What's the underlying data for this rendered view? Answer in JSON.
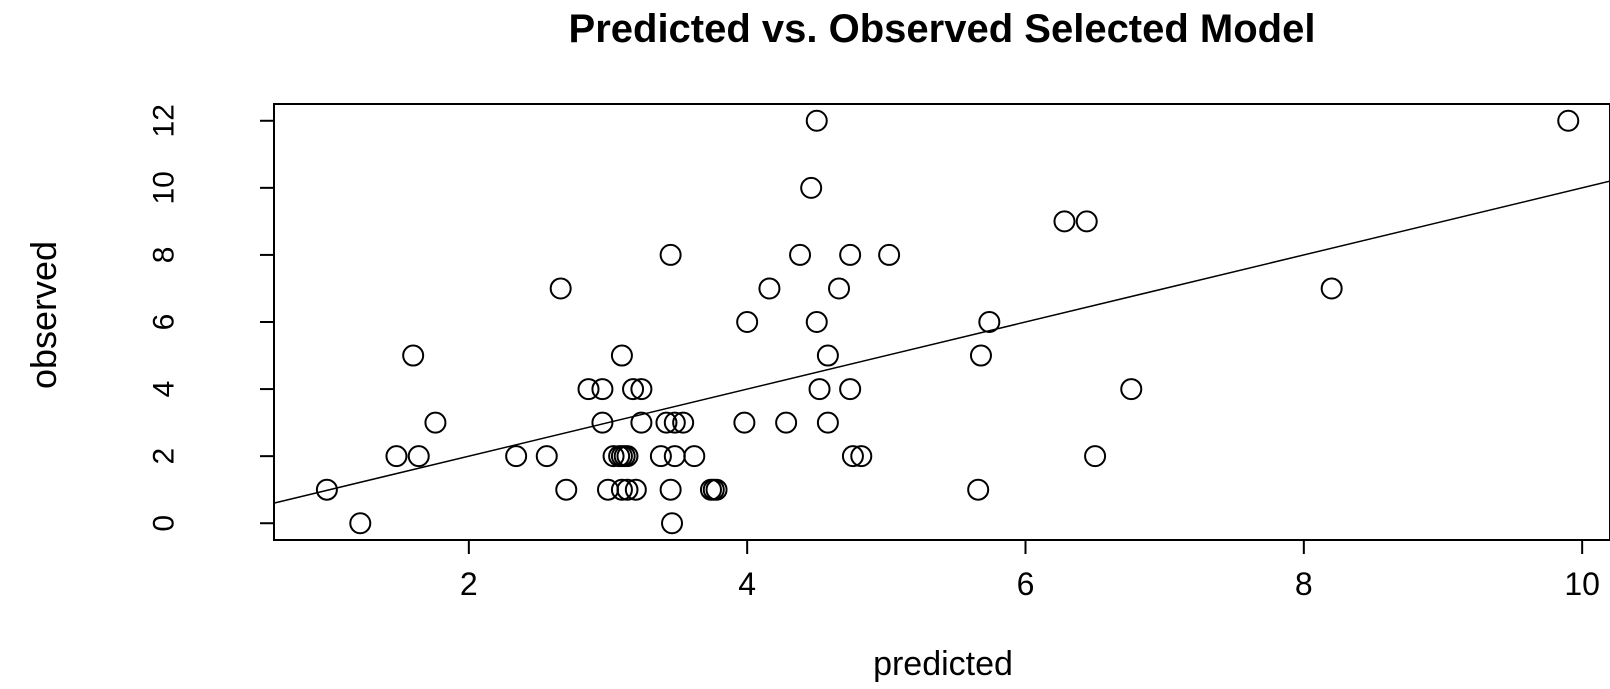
{
  "chart_data": {
    "type": "scatter",
    "title": "Predicted vs. Observed Selected Model",
    "xlabel": "predicted",
    "ylabel": "observed",
    "xlim": [
      0.6,
      10.2
    ],
    "ylim": [
      -0.5,
      12.5
    ],
    "x_ticks": [
      2,
      4,
      6,
      8,
      10
    ],
    "y_ticks": [
      0,
      2,
      4,
      6,
      8,
      10,
      12
    ],
    "x_tick_labels": [
      "2",
      "4",
      "6",
      "8",
      "10"
    ],
    "y_tick_labels": [
      "0",
      "2",
      "4",
      "6",
      "8",
      "10",
      "12"
    ],
    "grid": false,
    "legend": "none",
    "marker": "open-circle",
    "marker_color": "#000000",
    "series": [
      {
        "points": [
          {
            "x": 0.98,
            "y": 1
          },
          {
            "x": 1.22,
            "y": 0
          },
          {
            "x": 1.48,
            "y": 2
          },
          {
            "x": 1.6,
            "y": 5
          },
          {
            "x": 1.64,
            "y": 2
          },
          {
            "x": 1.76,
            "y": 3
          },
          {
            "x": 2.34,
            "y": 2
          },
          {
            "x": 2.56,
            "y": 2
          },
          {
            "x": 2.66,
            "y": 7
          },
          {
            "x": 2.7,
            "y": 1
          },
          {
            "x": 2.86,
            "y": 4
          },
          {
            "x": 2.96,
            "y": 4
          },
          {
            "x": 2.96,
            "y": 3
          },
          {
            "x": 3.0,
            "y": 1
          },
          {
            "x": 3.04,
            "y": 2
          },
          {
            "x": 3.08,
            "y": 2
          },
          {
            "x": 3.1,
            "y": 2
          },
          {
            "x": 3.12,
            "y": 2
          },
          {
            "x": 3.14,
            "y": 2
          },
          {
            "x": 3.1,
            "y": 5
          },
          {
            "x": 3.1,
            "y": 1
          },
          {
            "x": 3.14,
            "y": 1
          },
          {
            "x": 3.18,
            "y": 4
          },
          {
            "x": 3.2,
            "y": 1
          },
          {
            "x": 3.24,
            "y": 4
          },
          {
            "x": 3.24,
            "y": 3
          },
          {
            "x": 3.38,
            "y": 2
          },
          {
            "x": 3.42,
            "y": 3
          },
          {
            "x": 3.45,
            "y": 8
          },
          {
            "x": 3.45,
            "y": 1
          },
          {
            "x": 3.46,
            "y": 0
          },
          {
            "x": 3.48,
            "y": 3
          },
          {
            "x": 3.48,
            "y": 2
          },
          {
            "x": 3.54,
            "y": 3
          },
          {
            "x": 3.62,
            "y": 2
          },
          {
            "x": 3.74,
            "y": 1
          },
          {
            "x": 3.76,
            "y": 1
          },
          {
            "x": 3.78,
            "y": 1
          },
          {
            "x": 3.98,
            "y": 3
          },
          {
            "x": 4.0,
            "y": 6
          },
          {
            "x": 4.16,
            "y": 7
          },
          {
            "x": 4.28,
            "y": 3
          },
          {
            "x": 4.38,
            "y": 8
          },
          {
            "x": 4.46,
            "y": 10
          },
          {
            "x": 4.5,
            "y": 12
          },
          {
            "x": 4.5,
            "y": 6
          },
          {
            "x": 4.52,
            "y": 4
          },
          {
            "x": 4.58,
            "y": 5
          },
          {
            "x": 4.58,
            "y": 3
          },
          {
            "x": 4.66,
            "y": 7
          },
          {
            "x": 4.74,
            "y": 8
          },
          {
            "x": 4.74,
            "y": 4
          },
          {
            "x": 4.76,
            "y": 2
          },
          {
            "x": 4.82,
            "y": 2
          },
          {
            "x": 5.02,
            "y": 8
          },
          {
            "x": 5.66,
            "y": 1
          },
          {
            "x": 5.68,
            "y": 5
          },
          {
            "x": 5.74,
            "y": 6
          },
          {
            "x": 6.28,
            "y": 9
          },
          {
            "x": 6.44,
            "y": 9
          },
          {
            "x": 6.5,
            "y": 2
          },
          {
            "x": 6.76,
            "y": 4
          },
          {
            "x": 8.2,
            "y": 7
          },
          {
            "x": 9.9,
            "y": 12
          }
        ]
      }
    ],
    "reference_line": {
      "type": "abline",
      "intercept": 0,
      "slope": 1,
      "x_range": [
        0.6,
        10.2
      ]
    }
  }
}
